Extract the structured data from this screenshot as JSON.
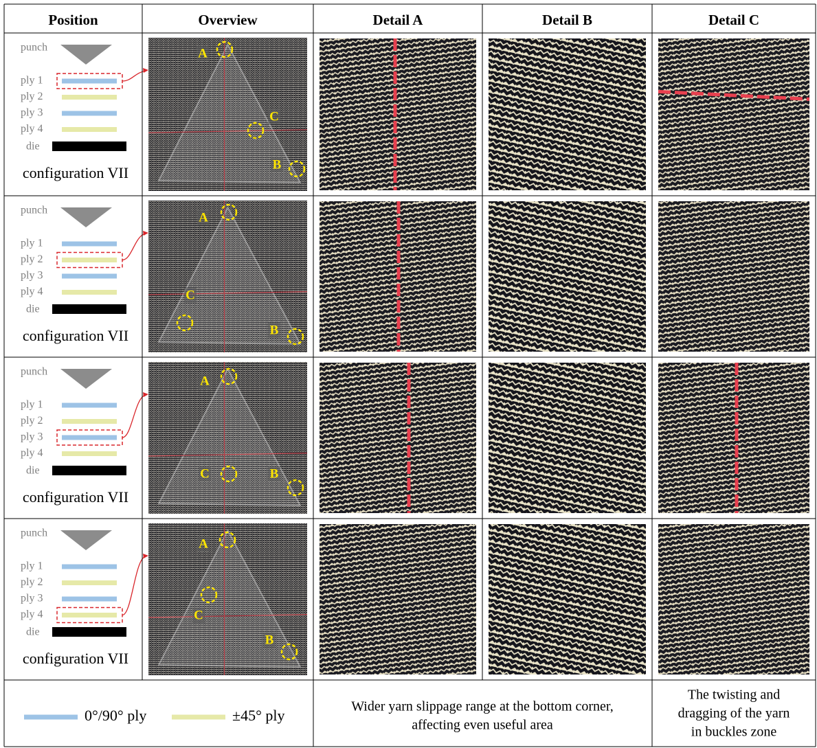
{
  "header": [
    "Position",
    "Overview",
    "Detail A",
    "Detail B",
    "Detail C"
  ],
  "rows": [
    {
      "punch": "punch",
      "plies": [
        {
          "label": "ply 1",
          "color": "#9dc3e6"
        },
        {
          "label": "ply 2",
          "color": "#e6e9a8"
        },
        {
          "label": "ply 3",
          "color": "#9dc3e6"
        },
        {
          "label": "ply 4",
          "color": "#e6e9a8"
        }
      ],
      "die": "die",
      "highlighted_ply": 0,
      "caption": "configuration VII",
      "overview_labels": [
        "A",
        "B",
        "C"
      ]
    },
    {
      "punch": "punch",
      "plies": [
        {
          "label": "ply 1",
          "color": "#9dc3e6"
        },
        {
          "label": "ply 2",
          "color": "#e6e9a8"
        },
        {
          "label": "ply 3",
          "color": "#9dc3e6"
        },
        {
          "label": "ply 4",
          "color": "#e6e9a8"
        }
      ],
      "die": "die",
      "highlighted_ply": 1,
      "caption": "configuration VII",
      "overview_labels": [
        "A",
        "B",
        "C"
      ]
    },
    {
      "punch": "punch",
      "plies": [
        {
          "label": "ply 1",
          "color": "#9dc3e6"
        },
        {
          "label": "ply 2",
          "color": "#e6e9a8"
        },
        {
          "label": "ply 3",
          "color": "#9dc3e6"
        },
        {
          "label": "ply 4",
          "color": "#e6e9a8"
        }
      ],
      "die": "die",
      "highlighted_ply": 2,
      "caption": "configuration VII",
      "overview_labels": [
        "A",
        "B",
        "C"
      ]
    },
    {
      "punch": "punch",
      "plies": [
        {
          "label": "ply 1",
          "color": "#9dc3e6"
        },
        {
          "label": "ply 2",
          "color": "#e6e9a8"
        },
        {
          "label": "ply 3",
          "color": "#9dc3e6"
        },
        {
          "label": "ply 4",
          "color": "#e6e9a8"
        }
      ],
      "die": "die",
      "highlighted_ply": 3,
      "caption": "configuration VII",
      "overview_labels": [
        "A",
        "B",
        "C"
      ]
    }
  ],
  "footer": {
    "legend": [
      {
        "label": "0°/90° ply",
        "color": "#9dc3e6"
      },
      {
        "label": "±45° ply",
        "color": "#e6e9a8"
      }
    ],
    "detail_ab_note": [
      "Wider yarn slippage range at the bottom corner,",
      "affecting even useful area"
    ],
    "detail_c_note": [
      "The twisting and",
      "dragging of the yarn",
      "in buckles zone"
    ]
  }
}
